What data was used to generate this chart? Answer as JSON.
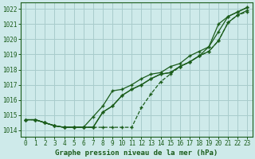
{
  "background_color": "#ceeaea",
  "grid_color": "#a8cccc",
  "line_color": "#1a5c1a",
  "text_color": "#1a5c1a",
  "xlabel": "Graphe pression niveau de la mer (hPa)",
  "ylim": [
    1013.6,
    1022.4
  ],
  "xlim": [
    -0.5,
    23.5
  ],
  "yticks": [
    1014,
    1015,
    1016,
    1017,
    1018,
    1019,
    1020,
    1021,
    1022
  ],
  "xticks": [
    0,
    1,
    2,
    3,
    4,
    5,
    6,
    7,
    8,
    9,
    10,
    11,
    12,
    13,
    14,
    15,
    16,
    17,
    18,
    19,
    20,
    21,
    22,
    23
  ],
  "series": [
    [
      1014.7,
      1014.7,
      1014.5,
      1014.3,
      1014.2,
      1014.2,
      1014.2,
      1014.2,
      1014.2,
      1014.2,
      1014.2,
      1014.2,
      1015.5,
      1016.4,
      1017.2,
      1017.7,
      1018.2,
      1018.5,
      1018.9,
      1019.2,
      1019.9,
      1021.1,
      1021.6,
      1021.8
    ],
    [
      1014.7,
      1014.7,
      1014.5,
      1014.3,
      1014.2,
      1014.2,
      1014.2,
      1014.2,
      1015.2,
      1015.6,
      1016.3,
      1016.7,
      1017.0,
      1017.4,
      1017.7,
      1017.8,
      1018.2,
      1018.5,
      1018.9,
      1019.2,
      1019.9,
      1021.1,
      1021.6,
      1021.9
    ],
    [
      1014.7,
      1014.7,
      1014.5,
      1014.3,
      1014.2,
      1014.2,
      1014.2,
      1014.2,
      1015.2,
      1015.6,
      1016.3,
      1016.7,
      1017.0,
      1017.4,
      1017.7,
      1017.8,
      1018.2,
      1018.5,
      1018.9,
      1019.5,
      1020.5,
      1021.5,
      1021.8,
      1022.1
    ],
    [
      1014.7,
      1014.7,
      1014.5,
      1014.3,
      1014.2,
      1014.2,
      1014.2,
      1014.9,
      1015.6,
      1016.6,
      1016.7,
      1017.0,
      1017.4,
      1017.7,
      1017.8,
      1018.2,
      1018.4,
      1018.9,
      1019.2,
      1019.5,
      1021.0,
      1021.5,
      1021.8,
      1022.1
    ]
  ],
  "marker_size": 2.2,
  "line_width": 0.9,
  "font_size_tick": 5.5,
  "font_size_label": 6.5
}
